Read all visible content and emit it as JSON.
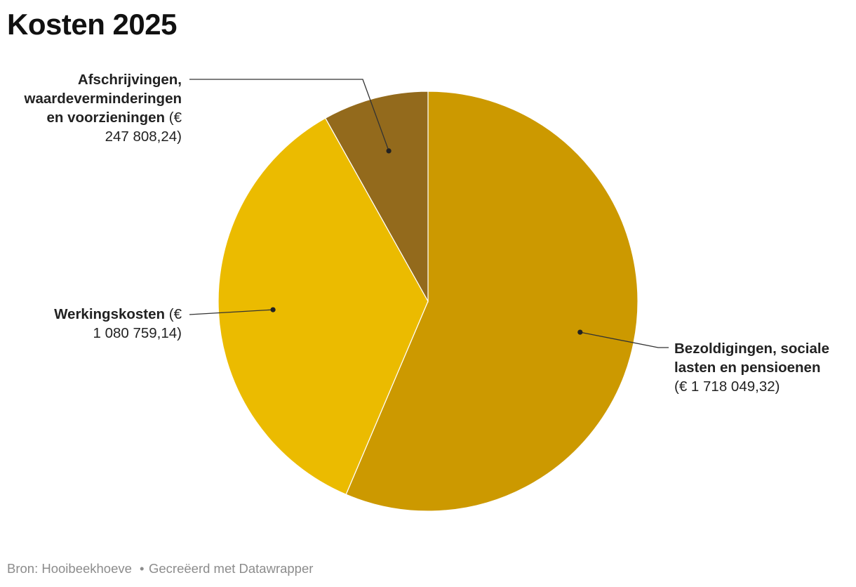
{
  "title": "Kosten 2025",
  "chart_data": {
    "type": "pie",
    "title": "Kosten 2025",
    "currency": "€",
    "slices": [
      {
        "name": "Bezoldigingen, sociale lasten en pensioenen",
        "value": 1718049.32,
        "value_label": "(€ 1 718 049,32)",
        "color": "#cc9900"
      },
      {
        "name": "Werkingskosten",
        "value": 1080759.14,
        "value_label": "(€ 1 080 759,14)",
        "color": "#ebbb00"
      },
      {
        "name": "Afschrijvingen, waardeverminderingen en voorzieningen",
        "value": 247808.24,
        "value_label": "(€ 247 808,24)",
        "color": "#936a1c"
      }
    ]
  },
  "labels": {
    "bezoldigingen": {
      "lines": [
        "Bezoldigingen, sociale",
        "lasten en pensioenen"
      ],
      "value_line": "(€ 1 718 049,32)"
    },
    "werkingskosten": {
      "name": "Werkingskosten",
      "value_start": " (€",
      "value_end": "1 080 759,14)"
    },
    "afschrijvingen": {
      "lines": [
        "Afschrijvingen,",
        "waardeverminderingen"
      ],
      "line3": "en voorzieningen",
      "value_start": " (€",
      "value_end": "247 808,24)"
    }
  },
  "footer": {
    "source": "Bron: Hooibeekhoeve",
    "separator": "•",
    "credit": "Gecreëerd met Datawrapper"
  }
}
